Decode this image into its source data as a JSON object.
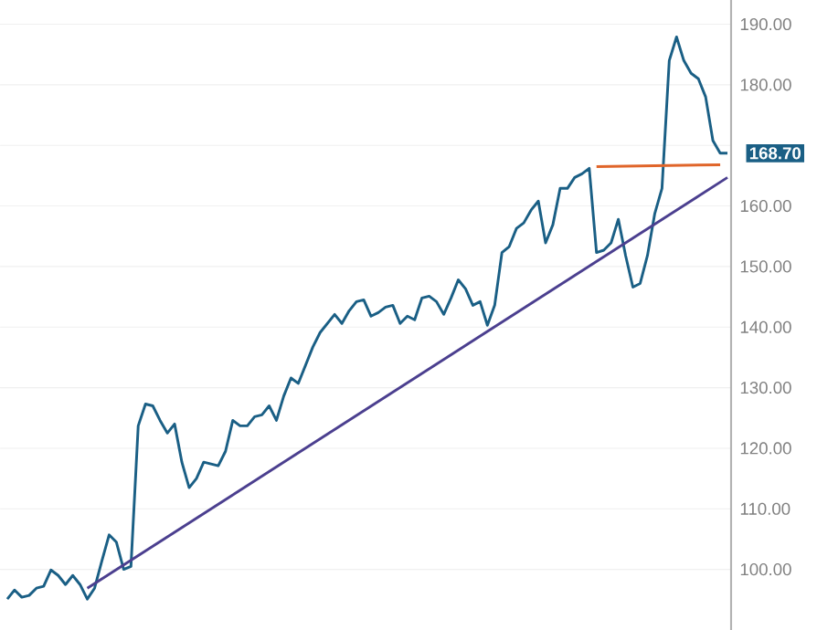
{
  "chart_data": {
    "type": "line",
    "categories": [
      null,
      null,
      null,
      null,
      null,
      null,
      null,
      null,
      null,
      null,
      null,
      null,
      null,
      null,
      null,
      null,
      null,
      null,
      null,
      null,
      null,
      null,
      null,
      null,
      null,
      null,
      null,
      null,
      null,
      null,
      null,
      null,
      null,
      null,
      null,
      null,
      null,
      null,
      null,
      null,
      null,
      null,
      null,
      null,
      null,
      null,
      null,
      null,
      null,
      null,
      null,
      null,
      null,
      null,
      null,
      null,
      null,
      null,
      null,
      null,
      null,
      null,
      null,
      null,
      null,
      null,
      null,
      null,
      null,
      null,
      null,
      null,
      null,
      null,
      null,
      null,
      null,
      null,
      null,
      null,
      null,
      null,
      null,
      null,
      null,
      null,
      null,
      null,
      null,
      null,
      null,
      null,
      null,
      null,
      null,
      null,
      null,
      null,
      null,
      null
    ],
    "series": [
      {
        "color": "#1a5f85",
        "values": [
          95.1,
          96.6,
          95.4,
          95.7,
          96.9,
          97.2,
          99.9,
          99.0,
          97.5,
          99.0,
          97.5,
          95.1,
          96.9,
          101.4,
          105.7,
          104.5,
          100.0,
          100.5,
          123.7,
          127.3,
          127.0,
          124.6,
          122.5,
          124.0,
          117.7,
          113.5,
          115.0,
          117.7,
          117.4,
          117.1,
          119.5,
          124.6,
          123.7,
          123.7,
          125.2,
          125.5,
          127.0,
          124.6,
          128.6,
          131.6,
          130.7,
          133.7,
          136.7,
          139.1,
          140.6,
          142.1,
          140.6,
          142.7,
          144.2,
          144.5,
          141.8,
          142.4,
          143.3,
          143.6,
          140.6,
          141.8,
          141.2,
          144.8,
          145.1,
          144.2,
          142.1,
          144.8,
          147.8,
          146.3,
          143.6,
          144.2,
          140.3,
          143.6,
          152.3,
          153.3,
          156.3,
          157.2,
          159.3,
          160.8,
          153.9,
          156.9,
          162.9,
          162.9,
          164.7,
          165.3,
          166.2,
          152.3,
          152.7,
          153.9,
          157.8,
          151.8,
          146.6,
          147.2,
          151.8,
          158.7,
          162.9,
          184.0,
          187.9,
          184.0,
          181.9,
          181.0,
          178.0,
          170.8,
          168.7,
          168.7
        ]
      },
      {
        "type": "line",
        "color": "#4b3f8f",
        "values": [
          null,
          null,
          null,
          null,
          null,
          null,
          null,
          null,
          null,
          null,
          null,
          96.9,
          null,
          null,
          null,
          null,
          null,
          null,
          null,
          null,
          null,
          null,
          null,
          null,
          null,
          null,
          null,
          null,
          null,
          null,
          null,
          null,
          null,
          null,
          null,
          null,
          null,
          null,
          null,
          null,
          null,
          null,
          null,
          null,
          null,
          null,
          null,
          null,
          null,
          null,
          null,
          null,
          null,
          null,
          null,
          null,
          null,
          null,
          null,
          null,
          null,
          null,
          null,
          null,
          null,
          null,
          null,
          null,
          null,
          null,
          null,
          null,
          null,
          null,
          null,
          null,
          null,
          null,
          null,
          null,
          null,
          null,
          null,
          null,
          null,
          null,
          null,
          null,
          null,
          null,
          null,
          null,
          null,
          null,
          null,
          null,
          null,
          null,
          null,
          164.7
        ]
      },
      {
        "type": "line",
        "color": "#e0652a",
        "values": [
          null,
          null,
          null,
          null,
          null,
          null,
          null,
          null,
          null,
          null,
          null,
          null,
          null,
          null,
          null,
          null,
          null,
          null,
          null,
          null,
          null,
          null,
          null,
          null,
          null,
          null,
          null,
          null,
          null,
          null,
          null,
          null,
          null,
          null,
          null,
          null,
          null,
          null,
          null,
          null,
          null,
          null,
          null,
          null,
          null,
          null,
          null,
          null,
          null,
          null,
          null,
          null,
          null,
          null,
          null,
          null,
          null,
          null,
          null,
          null,
          null,
          null,
          null,
          null,
          null,
          null,
          null,
          null,
          null,
          null,
          null,
          null,
          null,
          null,
          null,
          null,
          null,
          null,
          null,
          null,
          null,
          166.5,
          null,
          null,
          null,
          null,
          null,
          null,
          null,
          null,
          null,
          null,
          null,
          null,
          null,
          null,
          null,
          null,
          166.8,
          null
        ]
      }
    ],
    "ylim": [
      90,
      194
    ],
    "yticks": [
      {
        "value": 100,
        "label": "100.00"
      },
      {
        "value": 110,
        "label": "110.00"
      },
      {
        "value": 120,
        "label": "120.00"
      },
      {
        "value": 130,
        "label": "130.00"
      },
      {
        "value": 140,
        "label": "140.00"
      },
      {
        "value": 150,
        "label": "150.00"
      },
      {
        "value": 160,
        "label": "160.00"
      },
      {
        "value": 170,
        "label": null
      },
      {
        "value": 180,
        "label": "180.00"
      },
      {
        "value": 190,
        "label": "190.00"
      }
    ],
    "grid": "y",
    "marker": "none",
    "line_style": "solid",
    "annotations": [
      "168.70"
    ]
  }
}
